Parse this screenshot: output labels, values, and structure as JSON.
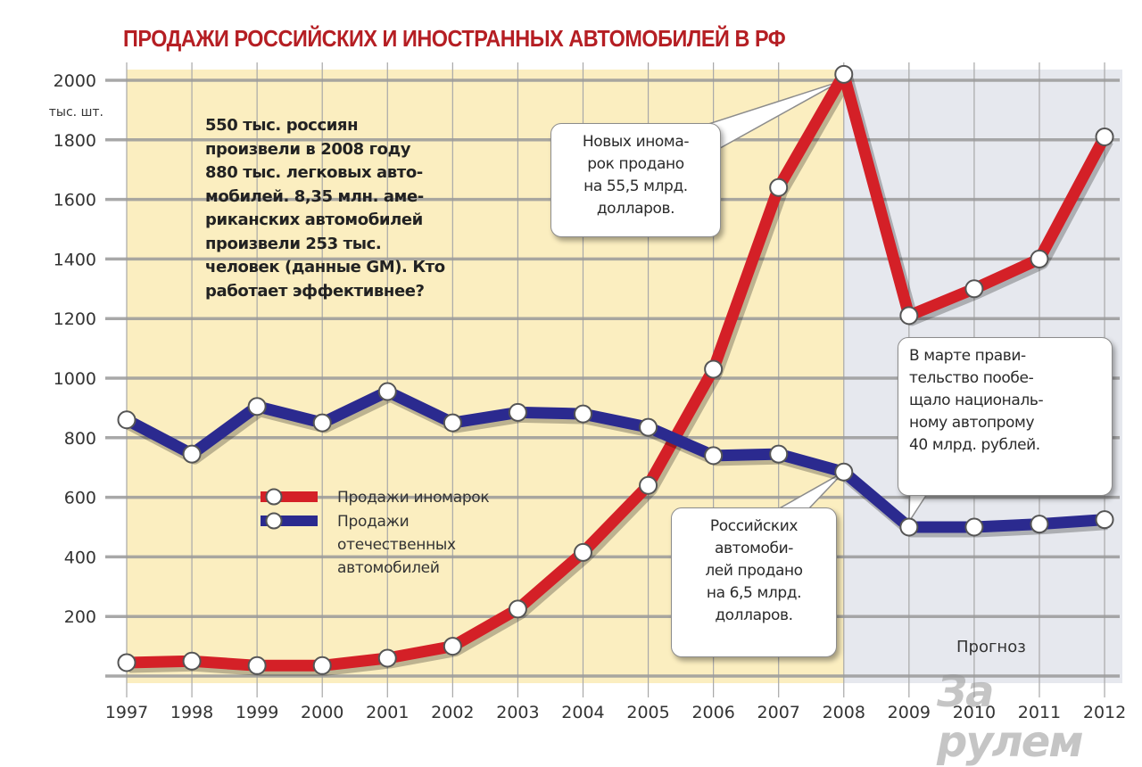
{
  "title": "ПРОДАЖИ РОССИЙСКИХ И ИНОСТРАННЫХ АВТОМОБИЛЕЙ В РФ",
  "y_unit": "тыс. шт.",
  "fact_note": "550 тыс. россиян произвели в 2008 году 880 тыс. легковых авто-мобилей. 8,35 млн. аме-риканских автомобилей произвели 253 тыс. человек (данные GM). Кто работает эффективнее?",
  "fact_lines": [
    "550 тыс. россиян",
    "произвели в 2008 году",
    "880 тыс. легковых авто-",
    "мобилей. 8,35 млн. аме-",
    "риканских автомобилей",
    "произвели 253 тыс.",
    "человек (данные GM). Кто",
    "работает эффективнее?"
  ],
  "callouts": {
    "foreign_2008": [
      "Новых инома-",
      "рок продано",
      "на 55,5 млрд.",
      "долларов."
    ],
    "government_2009": [
      "В марте прави-",
      "тельство пообе-",
      "щало националь-",
      "ному автопрому",
      "40 млрд. рублей."
    ],
    "domestic_2008": [
      "Российских",
      "автомоби-",
      "лей продано",
      "на 6,5 млрд.",
      "долларов."
    ]
  },
  "legend": {
    "foreign": "Продажи иномарок",
    "domestic_lines": [
      "Продажи",
      "отечественных",
      "автомобилей"
    ]
  },
  "forecast_label": "Прогноз",
  "watermark": "За рулем",
  "colors": {
    "title": "#b51e23",
    "foreign_line": "#d42027",
    "domestic_line": "#2b2a8f",
    "actual_bg": "#fbeec0",
    "forecast_bg": "#e6e8ee",
    "grid": "#9a9a9a"
  },
  "chart_data": {
    "type": "line",
    "title": "ПРОДАЖИ РОССИЙСКИХ И ИНОСТРАННЫХ АВТОМОБИЛЕЙ В РФ",
    "xlabel": "",
    "ylabel": "тыс. шт.",
    "x": [
      "1997",
      "1998",
      "1999",
      "2000",
      "2001",
      "2002",
      "2003",
      "2004",
      "2005",
      "2006",
      "2007",
      "2008",
      "2009",
      "2010",
      "2011",
      "2012"
    ],
    "yticks": [
      200,
      400,
      600,
      800,
      1000,
      1200,
      1400,
      1600,
      1800,
      2000
    ],
    "ylim": [
      0,
      2000
    ],
    "grid": true,
    "legend_position": "center-left",
    "forecast_from": "2008",
    "series": [
      {
        "name": "Продажи иномарок",
        "color": "#d42027",
        "values": [
          45,
          50,
          35,
          35,
          60,
          100,
          225,
          415,
          640,
          1030,
          1640,
          2020,
          1210,
          1300,
          1400,
          1810
        ]
      },
      {
        "name": "Продажи отечественных автомобилей",
        "color": "#2b2a8f",
        "values": [
          860,
          745,
          905,
          850,
          955,
          850,
          885,
          880,
          835,
          740,
          745,
          685,
          500,
          500,
          510,
          525
        ]
      }
    ],
    "annotations": [
      {
        "x": "2008",
        "series": "Продажи иномарок",
        "text": "Новых иномарок продано на 55,5 млрд. долларов."
      },
      {
        "x": "2008",
        "series": "Продажи отечественных автомобилей",
        "text": "Российских автомобилей продано на 6,5 млрд. долларов."
      },
      {
        "x": "2009",
        "series": "Продажи отечественных автомобилей",
        "text": "В марте правительство пообещало национальному автопрому 40 млрд. рублей."
      },
      {
        "x": "2009-2012",
        "text": "Прогноз"
      }
    ]
  }
}
